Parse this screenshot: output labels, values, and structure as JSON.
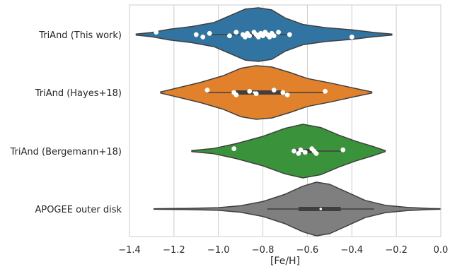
{
  "chart_data": {
    "type": "violin",
    "title": "",
    "xlabel": "[Fe/H]",
    "ylabel": "",
    "xlim": [
      -1.4,
      0.0
    ],
    "x_ticks": [
      -1.4,
      -1.2,
      -1.0,
      -0.8,
      -0.6,
      -0.4,
      -0.2,
      0.0
    ],
    "x_tick_labels": [
      "−1.4",
      "−1.2",
      "−1.0",
      "−0.8",
      "−0.6",
      "−0.4",
      "−0.2",
      "0.0"
    ],
    "grid": "vertical",
    "categories": [
      "TriAnd (This work)",
      "TriAnd (Hayes+18)",
      "TriAnd (Bergemann+18)",
      "APOGEE outer disk"
    ],
    "colors": [
      "#3274a1",
      "#e1812c",
      "#3a923a",
      "#7f7f7f"
    ],
    "series": [
      {
        "name": "TriAnd (This work)",
        "violin": {
          "min": -1.37,
          "max": -0.22,
          "profile": [
            [
              -1.37,
              0.02
            ],
            [
              -1.3,
              0.08
            ],
            [
              -1.22,
              0.2
            ],
            [
              -1.12,
              0.3
            ],
            [
              -1.02,
              0.45
            ],
            [
              -0.95,
              0.7
            ],
            [
              -0.88,
              0.95
            ],
            [
              -0.82,
              1.0
            ],
            [
              -0.76,
              0.92
            ],
            [
              -0.7,
              0.62
            ],
            [
              -0.62,
              0.38
            ],
            [
              -0.52,
              0.26
            ],
            [
              -0.4,
              0.18
            ],
            [
              -0.3,
              0.08
            ],
            [
              -0.22,
              0.02
            ]
          ]
        },
        "box": {
          "q1": -0.86,
          "median": -0.81,
          "q3": -0.75,
          "whisker_low": -1.05,
          "whisker_high": -0.68
        },
        "points": [
          -1.28,
          -1.1,
          -1.07,
          -1.04,
          -0.95,
          -0.92,
          -0.89,
          -0.88,
          -0.87,
          -0.86,
          -0.84,
          -0.83,
          -0.82,
          -0.81,
          -0.8,
          -0.79,
          -0.78,
          -0.77,
          -0.76,
          -0.75,
          -0.73,
          -0.68,
          -0.4
        ]
      },
      {
        "name": "TriAnd (Hayes+18)",
        "violin": {
          "min": -1.26,
          "max": -0.31,
          "profile": [
            [
              -1.26,
              0.02
            ],
            [
              -1.18,
              0.18
            ],
            [
              -1.08,
              0.38
            ],
            [
              -0.98,
              0.62
            ],
            [
              -0.9,
              0.9
            ],
            [
              -0.83,
              1.0
            ],
            [
              -0.76,
              0.95
            ],
            [
              -0.68,
              0.75
            ],
            [
              -0.6,
              0.52
            ],
            [
              -0.5,
              0.36
            ],
            [
              -0.4,
              0.18
            ],
            [
              -0.31,
              0.02
            ]
          ]
        },
        "box": {
          "q1": -0.93,
          "median": -0.84,
          "q3": -0.71,
          "whisker_low": -1.05,
          "whisker_high": -0.52
        },
        "points": [
          -1.05,
          -0.93,
          -0.92,
          -0.86,
          -0.83,
          -0.75,
          -0.71,
          -0.69,
          -0.52
        ]
      },
      {
        "name": "TriAnd (Bergemann+18)",
        "violin": {
          "min": -1.12,
          "max": -0.25,
          "profile": [
            [
              -1.12,
              0.02
            ],
            [
              -1.02,
              0.1
            ],
            [
              -0.92,
              0.28
            ],
            [
              -0.8,
              0.55
            ],
            [
              -0.7,
              0.85
            ],
            [
              -0.62,
              1.0
            ],
            [
              -0.54,
              0.88
            ],
            [
              -0.46,
              0.6
            ],
            [
              -0.38,
              0.36
            ],
            [
              -0.3,
              0.16
            ],
            [
              -0.25,
              0.02
            ]
          ]
        },
        "box": {
          "q1": -0.66,
          "median": -0.62,
          "q3": -0.57,
          "whisker_low": -0.66,
          "whisker_high": -0.44
        },
        "points": [
          -0.93,
          -0.66,
          -0.64,
          -0.63,
          -0.61,
          -0.58,
          -0.57,
          -0.56,
          -0.44
        ]
      },
      {
        "name": "APOGEE outer disk",
        "violin": {
          "min": -1.29,
          "max": 0.0,
          "profile": [
            [
              -1.29,
              0.01
            ],
            [
              -1.15,
              0.02
            ],
            [
              -1.0,
              0.05
            ],
            [
              -0.9,
              0.12
            ],
            [
              -0.8,
              0.28
            ],
            [
              -0.7,
              0.55
            ],
            [
              -0.62,
              0.85
            ],
            [
              -0.56,
              1.0
            ],
            [
              -0.5,
              0.92
            ],
            [
              -0.42,
              0.62
            ],
            [
              -0.34,
              0.32
            ],
            [
              -0.25,
              0.14
            ],
            [
              -0.15,
              0.06
            ],
            [
              -0.05,
              0.02
            ],
            [
              0.0,
              0.01
            ]
          ]
        },
        "box": {
          "q1": -0.64,
          "median": -0.54,
          "q3": -0.45,
          "whisker_low": -0.78,
          "whisker_high": -0.3
        },
        "points": []
      }
    ]
  }
}
